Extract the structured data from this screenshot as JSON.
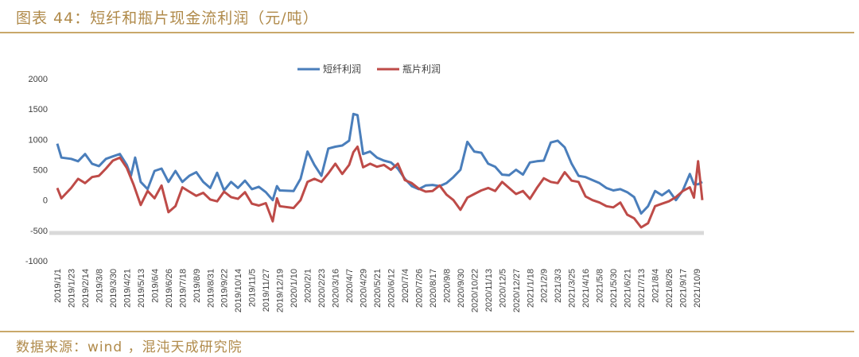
{
  "header": {
    "title": "图表 44：短纤和瓶片现金流利润（元/吨）"
  },
  "footer": {
    "source": "数据来源：wind ，混沌天成研究院"
  },
  "colors": {
    "accent": "#c9a86a",
    "short_fiber": "#4a7ebb",
    "bottle_chip": "#be4b48"
  },
  "chart_data": {
    "type": "line",
    "title": "",
    "xlabel": "",
    "ylabel": "",
    "ylim": [
      -1000,
      2000
    ],
    "yticks": [
      2000,
      1500,
      1000,
      500,
      0,
      -500,
      -1000
    ],
    "grid": false,
    "legend": "top-center",
    "x_tick_labels": [
      "2019/1/1",
      "2019/1/23",
      "2019/2/14",
      "2019/3/8",
      "2019/3/30",
      "2019/4/21",
      "2019/5/13",
      "2019/6/4",
      "2019/6/26",
      "2019/7/18",
      "2019/8/9",
      "2019/8/31",
      "2019/9/22",
      "2019/10/14",
      "2019/11/5",
      "2019/11/27",
      "2019/12/19",
      "2020/1/10",
      "2020/2/1",
      "2020/2/23",
      "2020/3/16",
      "2020/4/7",
      "2020/4/29",
      "2020/5/21",
      "2020/6/12",
      "2020/7/4",
      "2020/7/26",
      "2020/8/17",
      "2020/9/8",
      "2020/9/30",
      "2020/10/22",
      "2020/11/13",
      "2020/12/5",
      "2020/12/27",
      "2021/1/18",
      "2021/2/9",
      "2021/3/3",
      "2021/3/25",
      "2021/4/16",
      "2021/5/8",
      "2021/5/30",
      "2021/6/21",
      "2021/7/13",
      "2021/8/4",
      "2021/8/26",
      "2021/9/17",
      "2021/10/9"
    ],
    "series": [
      {
        "name": "短纤利润",
        "points": [
          [
            0,
            930
          ],
          [
            0.3,
            700
          ],
          [
            1,
            680
          ],
          [
            1.5,
            640
          ],
          [
            2,
            760
          ],
          [
            2.5,
            600
          ],
          [
            3,
            560
          ],
          [
            3.5,
            680
          ],
          [
            4,
            720
          ],
          [
            4.5,
            760
          ],
          [
            5,
            580
          ],
          [
            5.3,
            400
          ],
          [
            5.6,
            700
          ],
          [
            6,
            300
          ],
          [
            6.5,
            180
          ],
          [
            7,
            480
          ],
          [
            7.5,
            520
          ],
          [
            8,
            300
          ],
          [
            8.5,
            480
          ],
          [
            9,
            300
          ],
          [
            9.5,
            400
          ],
          [
            10,
            460
          ],
          [
            10.5,
            300
          ],
          [
            11,
            200
          ],
          [
            11.5,
            450
          ],
          [
            12,
            160
          ],
          [
            12.5,
            300
          ],
          [
            13,
            200
          ],
          [
            13.5,
            320
          ],
          [
            14,
            180
          ],
          [
            14.5,
            220
          ],
          [
            15,
            130
          ],
          [
            15.5,
            0
          ],
          [
            15.8,
            230
          ],
          [
            16,
            160
          ],
          [
            17,
            150
          ],
          [
            17.5,
            350
          ],
          [
            18,
            800
          ],
          [
            18.5,
            580
          ],
          [
            19,
            400
          ],
          [
            19.5,
            850
          ],
          [
            20,
            880
          ],
          [
            20.5,
            900
          ],
          [
            21,
            980
          ],
          [
            21.3,
            1420
          ],
          [
            21.6,
            1400
          ],
          [
            22,
            760
          ],
          [
            22.5,
            800
          ],
          [
            23,
            700
          ],
          [
            23.5,
            650
          ],
          [
            24,
            620
          ],
          [
            24.5,
            520
          ],
          [
            25,
            350
          ],
          [
            25.5,
            230
          ],
          [
            26,
            180
          ],
          [
            26.5,
            240
          ],
          [
            27,
            250
          ],
          [
            27.5,
            230
          ],
          [
            28,
            280
          ],
          [
            28.5,
            380
          ],
          [
            29,
            500
          ],
          [
            29.5,
            960
          ],
          [
            30,
            800
          ],
          [
            30.5,
            780
          ],
          [
            31,
            600
          ],
          [
            31.5,
            550
          ],
          [
            32,
            420
          ],
          [
            32.5,
            410
          ],
          [
            33,
            500
          ],
          [
            33.5,
            420
          ],
          [
            34,
            620
          ],
          [
            34.5,
            640
          ],
          [
            35,
            650
          ],
          [
            35.5,
            950
          ],
          [
            36,
            980
          ],
          [
            36.5,
            870
          ],
          [
            37,
            600
          ],
          [
            37.5,
            400
          ],
          [
            38,
            380
          ],
          [
            38.5,
            330
          ],
          [
            39,
            280
          ],
          [
            39.5,
            200
          ],
          [
            40,
            160
          ],
          [
            40.5,
            180
          ],
          [
            41,
            130
          ],
          [
            41.5,
            50
          ],
          [
            42,
            -220
          ],
          [
            42.5,
            -100
          ],
          [
            43,
            150
          ],
          [
            43.5,
            80
          ],
          [
            44,
            160
          ],
          [
            44.5,
            0
          ],
          [
            45,
            160
          ],
          [
            45.5,
            430
          ],
          [
            45.8,
            260
          ],
          [
            46.1,
            260
          ],
          [
            46.4,
            300
          ]
        ]
      },
      {
        "name": "瓶片利润",
        "points": [
          [
            0,
            200
          ],
          [
            0.3,
            30
          ],
          [
            1,
            200
          ],
          [
            1.5,
            350
          ],
          [
            2,
            280
          ],
          [
            2.5,
            380
          ],
          [
            3,
            400
          ],
          [
            3.5,
            520
          ],
          [
            4,
            650
          ],
          [
            4.5,
            700
          ],
          [
            5,
            530
          ],
          [
            5.5,
            250
          ],
          [
            6,
            -80
          ],
          [
            6.5,
            150
          ],
          [
            7,
            30
          ],
          [
            7.5,
            240
          ],
          [
            8,
            -200
          ],
          [
            8.5,
            -100
          ],
          [
            9,
            210
          ],
          [
            9.5,
            140
          ],
          [
            10,
            70
          ],
          [
            10.5,
            120
          ],
          [
            11,
            10
          ],
          [
            11.5,
            -20
          ],
          [
            12,
            140
          ],
          [
            12.5,
            50
          ],
          [
            13,
            20
          ],
          [
            13.5,
            130
          ],
          [
            14,
            -60
          ],
          [
            14.5,
            -90
          ],
          [
            15,
            -50
          ],
          [
            15.5,
            -350
          ],
          [
            15.8,
            30
          ],
          [
            16,
            -100
          ],
          [
            17,
            -130
          ],
          [
            17.5,
            0
          ],
          [
            18,
            300
          ],
          [
            18.5,
            350
          ],
          [
            19,
            300
          ],
          [
            19.5,
            440
          ],
          [
            20,
            600
          ],
          [
            20.5,
            430
          ],
          [
            21,
            580
          ],
          [
            21.3,
            790
          ],
          [
            21.6,
            880
          ],
          [
            22,
            540
          ],
          [
            22.5,
            600
          ],
          [
            23,
            550
          ],
          [
            23.5,
            580
          ],
          [
            24,
            500
          ],
          [
            24.5,
            600
          ],
          [
            25,
            330
          ],
          [
            25.5,
            280
          ],
          [
            26,
            190
          ],
          [
            26.5,
            140
          ],
          [
            27,
            150
          ],
          [
            27.5,
            240
          ],
          [
            28,
            90
          ],
          [
            28.5,
            0
          ],
          [
            29,
            -160
          ],
          [
            29.5,
            40
          ],
          [
            30,
            100
          ],
          [
            30.5,
            160
          ],
          [
            31,
            200
          ],
          [
            31.5,
            150
          ],
          [
            32,
            300
          ],
          [
            32.5,
            200
          ],
          [
            33,
            100
          ],
          [
            33.5,
            150
          ],
          [
            34,
            20
          ],
          [
            34.5,
            200
          ],
          [
            35,
            360
          ],
          [
            35.5,
            300
          ],
          [
            36,
            280
          ],
          [
            36.5,
            460
          ],
          [
            37,
            320
          ],
          [
            37.5,
            300
          ],
          [
            38,
            60
          ],
          [
            38.5,
            0
          ],
          [
            39,
            -40
          ],
          [
            39.5,
            -100
          ],
          [
            40,
            -120
          ],
          [
            40.5,
            -40
          ],
          [
            41,
            -240
          ],
          [
            41.5,
            -300
          ],
          [
            42,
            -450
          ],
          [
            42.5,
            -380
          ],
          [
            43,
            -100
          ],
          [
            43.5,
            -60
          ],
          [
            44,
            -20
          ],
          [
            44.5,
            50
          ],
          [
            45,
            150
          ],
          [
            45.5,
            210
          ],
          [
            45.8,
            40
          ],
          [
            46.1,
            640
          ],
          [
            46.4,
            0
          ]
        ]
      }
    ]
  }
}
